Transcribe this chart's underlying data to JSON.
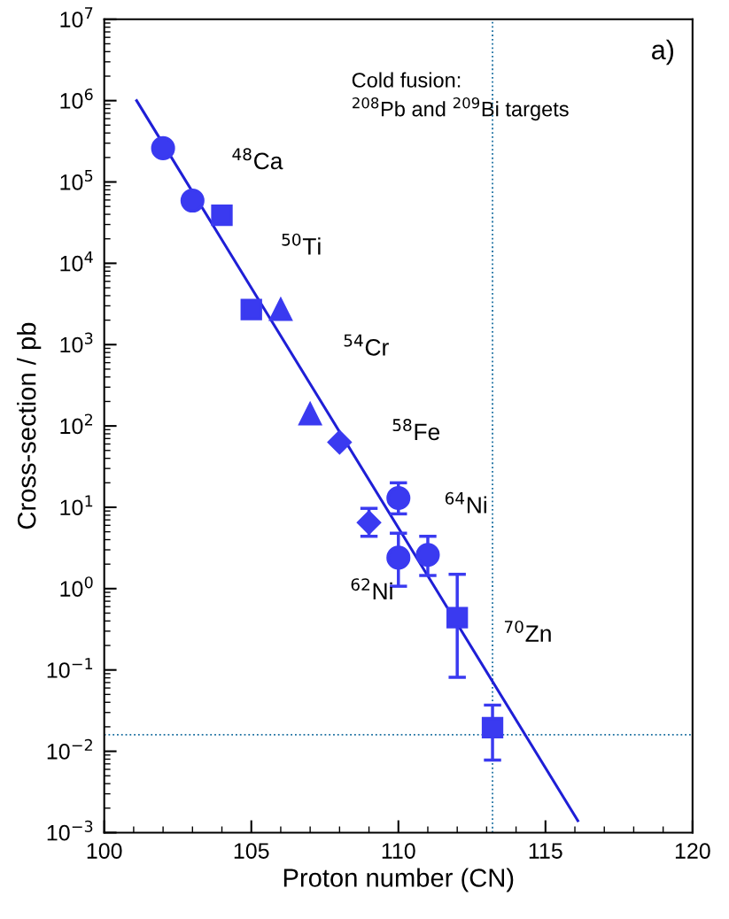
{
  "chart_data": {
    "type": "scatter",
    "xlabel": "Proton number (CN)",
    "ylabel": "Cross-section / pb",
    "xlim": [
      100,
      120
    ],
    "xticks": [
      100,
      105,
      110,
      115,
      120
    ],
    "ylim": [
      0.001,
      10000000
    ],
    "log": "y",
    "yticks": [
      {
        "value": 0.001,
        "label": "10$^{−3}$"
      },
      {
        "value": 0.01,
        "label": "10$^{−2}$"
      },
      {
        "value": 0.1,
        "label": "10$^{−1}$"
      },
      {
        "value": 1,
        "label": "10$^{0}$"
      },
      {
        "value": 10,
        "label": "10$^{1}$"
      },
      {
        "value": 100,
        "label": "10$^{2}$"
      },
      {
        "value": 1000,
        "label": "10$^{3}$"
      },
      {
        "value": 10000,
        "label": "10$^{4}$"
      },
      {
        "value": 100000,
        "label": "10$^{5}$"
      },
      {
        "value": 1000000,
        "label": "10$^{6}$"
      },
      {
        "value": 10000000,
        "label": "10$^{7}$"
      }
    ],
    "grid": false,
    "legend": false,
    "series": [
      {
        "type": "line",
        "color": "#1f1fd6",
        "marker": "none",
        "line_style": "solid",
        "x": [
          101.1,
          116.1
        ],
        "values": [
          1000000,
          0.0014
        ]
      },
      {
        "color": "#3a3af0",
        "marker": "circle",
        "x": [
          102,
          103,
          110
        ],
        "values": [
          260000,
          59000,
          13
        ],
        "errors": [
          null,
          null,
          [
            8.3,
            20
          ]
        ]
      },
      {
        "color": "#3a3af0",
        "marker": "square",
        "x": [
          104,
          105
        ],
        "values": [
          39000,
          2700
        ]
      },
      {
        "color": "#3a3af0",
        "marker": "triangle",
        "x": [
          106,
          107
        ],
        "values": [
          2700,
          140
        ]
      },
      {
        "color": "#3a3af0",
        "marker": "diamond",
        "x": [
          108,
          109
        ],
        "values": [
          63,
          6.5
        ],
        "errors": [
          null,
          [
            4.4,
            9.7
          ]
        ]
      },
      {
        "color": "#3a3af0",
        "marker": "circle",
        "x": [
          110,
          111
        ],
        "values": [
          2.4,
          2.6
        ],
        "errors": [
          [
            1.07,
            4.8
          ],
          [
            1.45,
            4.4
          ]
        ]
      },
      {
        "color": "#3a3af0",
        "marker": "square",
        "x": [
          112,
          113.2
        ],
        "values": [
          0.44,
          0.0195
        ],
        "errors": [
          [
            0.081,
            1.5
          ],
          [
            0.0078,
            0.037
          ]
        ]
      }
    ],
    "ref_lines": [
      {
        "axis": "x",
        "value": 113.2,
        "color": "#1a6fa0",
        "line_style": "dotted"
      },
      {
        "axis": "y",
        "value": 0.016,
        "color": "#1a6fa0",
        "line_style": "dotted"
      }
    ],
    "annotations": [
      "a)",
      "Cold fusion:\n$^{208}$Pb and $^{209}$Bi targets",
      "$^{48}$Ca",
      "$^{50}$Ti",
      "$^{54}$Cr",
      "$^{58}$Fe",
      "$^{64}$Ni",
      "$^{62}$Ni",
      "$^{70}$Zn"
    ]
  }
}
